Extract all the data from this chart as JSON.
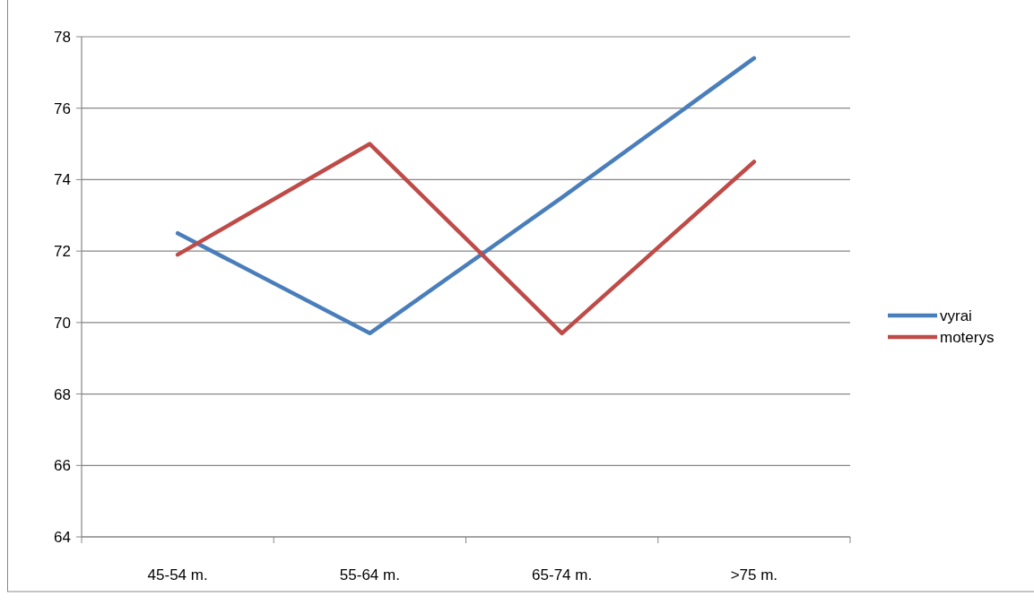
{
  "chart_data": {
    "type": "line",
    "categories": [
      "45-54 m.",
      "55-64 m.",
      "65-74 m.",
      ">75 m."
    ],
    "series": [
      {
        "name": "vyrai",
        "color": "#4a7ebb",
        "values": [
          72.5,
          69.7,
          73.5,
          77.4
        ]
      },
      {
        "name": "moterys",
        "color": "#be4b48",
        "values": [
          71.9,
          75,
          69.7,
          74.5
        ]
      }
    ],
    "ylim": [
      64,
      78
    ],
    "yticks": [
      64,
      66,
      68,
      70,
      72,
      74,
      76,
      78
    ],
    "grid": "y",
    "legend": "right",
    "marker": "none",
    "line_style": "solid"
  }
}
